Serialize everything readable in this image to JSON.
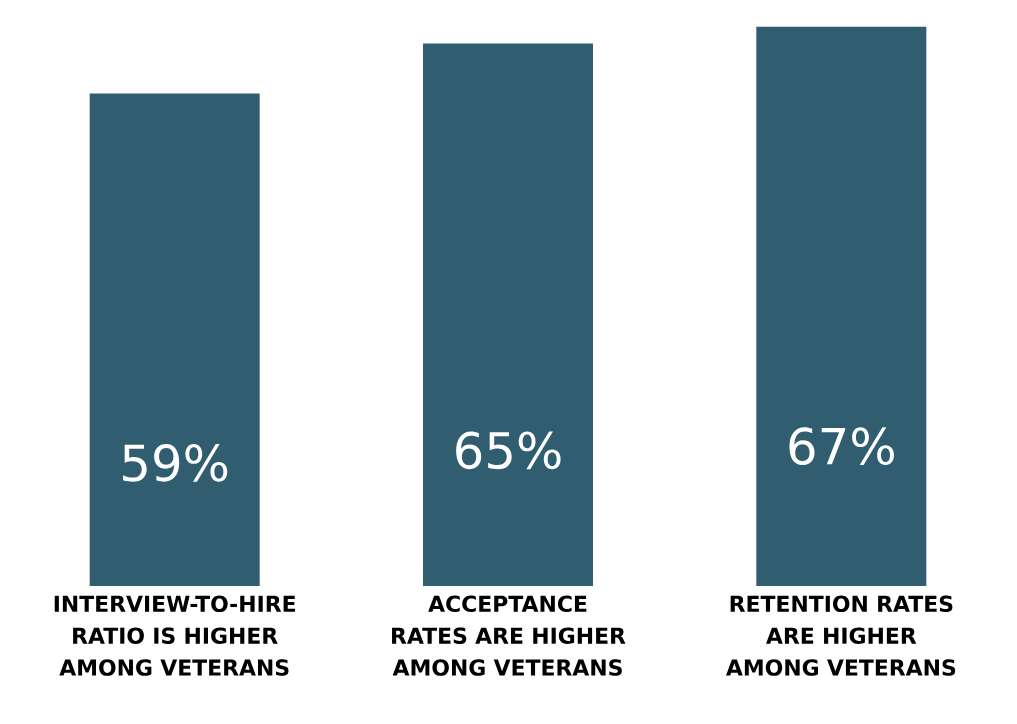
{
  "chart_data": {
    "type": "bar",
    "categories": [
      "INTERVIEW-TO-HIRE RATIO IS HIGHER AMONG VETERANS",
      "ACCEPTANCE RATES ARE HIGHER AMONG VETERANS",
      "RETENTION RATES ARE HIGHER AMONG VETERANS"
    ],
    "values": [
      59,
      65,
      67
    ],
    "value_labels": [
      "59%",
      "65%",
      "67%"
    ],
    "color": "#305e70"
  }
}
